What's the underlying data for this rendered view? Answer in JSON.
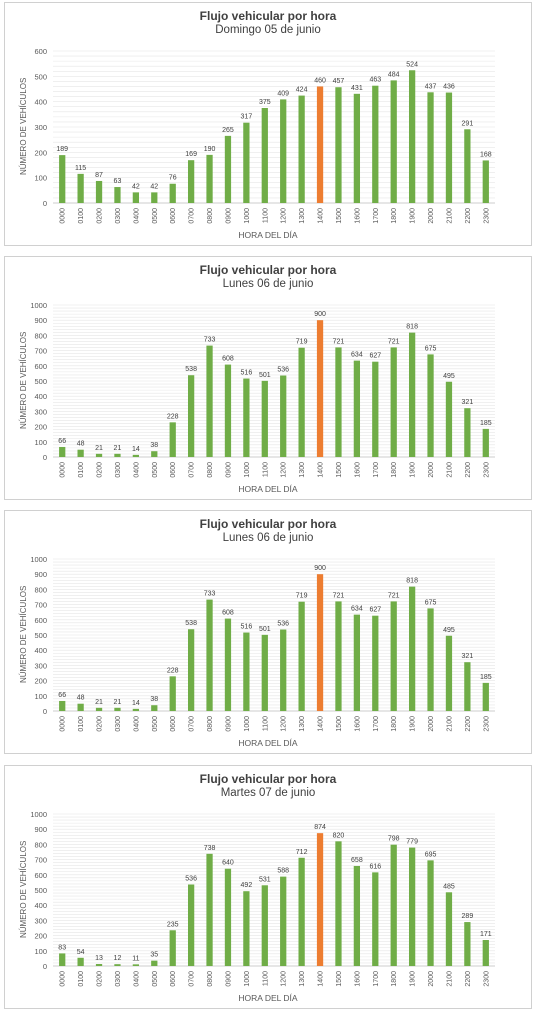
{
  "chart_data": [
    {
      "type": "bar",
      "title": "Flujo vehicular por hora",
      "subtitle": "Domingo  05 de junio",
      "xlabel": "HORA DEL DÍA",
      "ylabel": "NÚMERO DE VEHÍCULOS",
      "ylim": [
        0,
        600
      ],
      "yticks": [
        "0",
        "100",
        "200",
        "300",
        "400",
        "500",
        "600"
      ],
      "categories": [
        "0000",
        "0100",
        "0200",
        "0300",
        "0400",
        "0500",
        "0600",
        "0700",
        "0800",
        "0900",
        "1000",
        "1100",
        "1200",
        "1300",
        "1400",
        "1500",
        "1600",
        "1700",
        "1800",
        "1900",
        "2000",
        "2100",
        "2200",
        "2300"
      ],
      "values": [
        189,
        115,
        87,
        63,
        42,
        42,
        76,
        169,
        190,
        265,
        317,
        375,
        409,
        424,
        460,
        457,
        431,
        463,
        484,
        524,
        437,
        436,
        291,
        168
      ],
      "highlight_index": 14,
      "bar_color": "#70ad47",
      "highlight_color": "#ed7d31",
      "grid": true
    },
    {
      "type": "bar",
      "title": "Flujo vehicular por hora",
      "subtitle": "Lunes 06 de junio",
      "xlabel": "HORA DEL DÍA",
      "ylabel": "NÚMERO DE VEHÍCULOS",
      "ylim": [
        0,
        1000
      ],
      "yticks": [
        "0",
        "100",
        "200",
        "300",
        "400",
        "500",
        "600",
        "700",
        "800",
        "900",
        "1000"
      ],
      "categories": [
        "0000",
        "0100",
        "0200",
        "0300",
        "0400",
        "0500",
        "0600",
        "0700",
        "0800",
        "0900",
        "1000",
        "1100",
        "1200",
        "1300",
        "1400",
        "1500",
        "1600",
        "1700",
        "1800",
        "1900",
        "2000",
        "2100",
        "2200",
        "2300"
      ],
      "values": [
        66,
        48,
        21,
        21,
        14,
        38,
        228,
        538,
        733,
        608,
        516,
        501,
        536,
        719,
        900,
        721,
        634,
        627,
        721,
        818,
        675,
        495,
        321,
        185
      ],
      "highlight_index": 14,
      "bar_color": "#70ad47",
      "highlight_color": "#ed7d31",
      "grid": true
    },
    {
      "type": "bar",
      "title": "Flujo vehicular por hora",
      "subtitle": "Lunes 06 de junio",
      "xlabel": "HORA DEL DÍA",
      "ylabel": "NÚMERO DE VEHÍCULOS",
      "ylim": [
        0,
        1000
      ],
      "yticks": [
        "0",
        "100",
        "200",
        "300",
        "400",
        "500",
        "600",
        "700",
        "800",
        "900",
        "1000"
      ],
      "categories": [
        "0000",
        "0100",
        "0200",
        "0300",
        "0400",
        "0500",
        "0600",
        "0700",
        "0800",
        "0900",
        "1000",
        "1100",
        "1200",
        "1300",
        "1400",
        "1500",
        "1600",
        "1700",
        "1800",
        "1900",
        "2000",
        "2100",
        "2200",
        "2300"
      ],
      "values": [
        66,
        48,
        21,
        21,
        14,
        38,
        228,
        538,
        733,
        608,
        516,
        501,
        536,
        719,
        900,
        721,
        634,
        627,
        721,
        818,
        675,
        495,
        321,
        185
      ],
      "highlight_index": 14,
      "bar_color": "#70ad47",
      "highlight_color": "#ed7d31",
      "grid": true
    },
    {
      "type": "bar",
      "title": "Flujo vehicular por hora",
      "subtitle": "Martes 07 de junio",
      "xlabel": "HORA DEL DÍA",
      "ylabel": "NÚMERO DE VEHÍCULOS",
      "ylim": [
        0,
        1000
      ],
      "yticks": [
        "0",
        "100",
        "200",
        "300",
        "400",
        "500",
        "600",
        "700",
        "800",
        "900",
        "1000"
      ],
      "categories": [
        "0000",
        "0100",
        "0200",
        "0300",
        "0400",
        "0500",
        "0600",
        "0700",
        "0800",
        "0900",
        "1000",
        "1100",
        "1200",
        "1300",
        "1400",
        "1500",
        "1600",
        "1700",
        "1800",
        "1900",
        "2000",
        "2100",
        "2200",
        "2300"
      ],
      "values": [
        83,
        54,
        13,
        12,
        11,
        35,
        235,
        536,
        738,
        640,
        492,
        531,
        588,
        712,
        874,
        820,
        658,
        616,
        798,
        779,
        695,
        485,
        289,
        171
      ],
      "highlight_index": 14,
      "bar_color": "#70ad47",
      "highlight_color": "#ed7d31",
      "grid": true
    }
  ]
}
